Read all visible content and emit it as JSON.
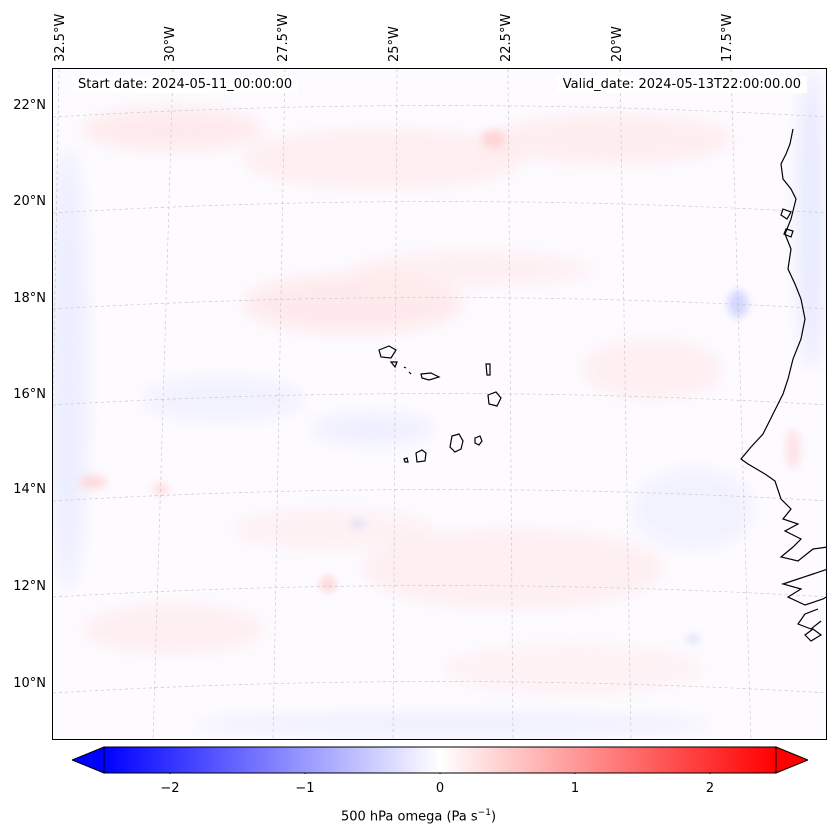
{
  "lon_labels": [
    "32.5°W",
    "30°W",
    "27.5°W",
    "25°W",
    "22.5°W",
    "20°W",
    "17.5°W"
  ],
  "lat_labels": [
    "22°N",
    "20°N",
    "18°N",
    "16°N",
    "14°N",
    "12°N",
    "10°N"
  ],
  "start_date": "Start date: 2024-05-11_00:00:00",
  "valid_date": "Valid_date: 2024-05-13T22:00:00.00",
  "colorbar": {
    "ticks": [
      "−2",
      "−1",
      "0",
      "1",
      "2"
    ],
    "tick_values": [
      -2,
      -1,
      0,
      1,
      2
    ],
    "range": [
      -2.5,
      2.5
    ],
    "cmap": "bwr",
    "extend": "both",
    "label": "500 hPa omega (Pa s",
    "label_sup": "−1",
    "label_end": ")"
  },
  "colors": {
    "negative": "#0000ff",
    "zero": "#ffffff",
    "positive": "#ff0000",
    "coast": "#000000"
  },
  "chart_data": {
    "type": "heatmap",
    "title": "",
    "variable": "500 hPa omega (Pa s⁻¹)",
    "lon_range": [
      -33,
      -15.5
    ],
    "lat_range": [
      9,
      22.8
    ],
    "projection": "Lambert conformal (curved graticule)",
    "gridlines": true,
    "colorbar_range": [
      -2.5,
      2.5
    ]
  }
}
